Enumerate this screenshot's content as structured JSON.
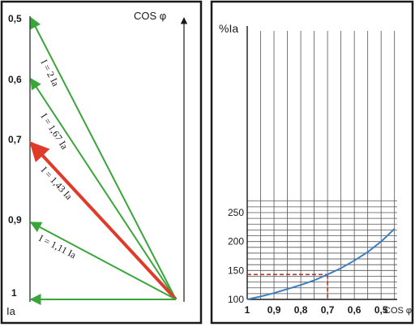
{
  "left_diagram": {
    "axis_top_label": "COS φ",
    "axis_bottom_label": "Ia",
    "cos_ticks": [
      "0,5",
      "0,6",
      "0,7",
      "0,9",
      "1"
    ],
    "vectors": [
      {
        "label": "I = 2 Ia",
        "cos_phi": 0.5,
        "color": "#3aa63a"
      },
      {
        "label": "I = 1,67 Ia",
        "cos_phi": 0.6,
        "color": "#3aa63a"
      },
      {
        "label": "I = 1,43 Ia",
        "cos_phi": 0.7,
        "color": "#e03a2a"
      },
      {
        "label": "I = 1,11 Ia",
        "cos_phi": 0.9,
        "color": "#3aa63a"
      },
      {
        "label": "",
        "cos_phi": 1.0,
        "color": "#3aa63a"
      }
    ]
  },
  "chart_data": {
    "type": "line",
    "title": "",
    "ylabel": "%Ia",
    "xlabel": "COS φ",
    "x_ticks": [
      "1",
      "0,9",
      "0,8",
      "0,7",
      "0,6",
      "0,5"
    ],
    "y_ticks": [
      "100",
      "150",
      "200",
      "250"
    ],
    "xlim": [
      1.0,
      0.44
    ],
    "ylim": [
      100,
      250
    ],
    "grid": true,
    "series": [
      {
        "x": [
          1.0,
          0.95,
          0.9,
          0.85,
          0.8,
          0.75,
          0.7,
          0.65,
          0.6,
          0.55,
          0.5,
          0.45
        ],
        "values": [
          100,
          105,
          111,
          118,
          125,
          133,
          143,
          154,
          167,
          182,
          200,
          222
        ],
        "color": "#3d7fc1"
      }
    ],
    "highlight": {
      "x": 0.7,
      "y": 143,
      "color": "#c0302a"
    }
  }
}
